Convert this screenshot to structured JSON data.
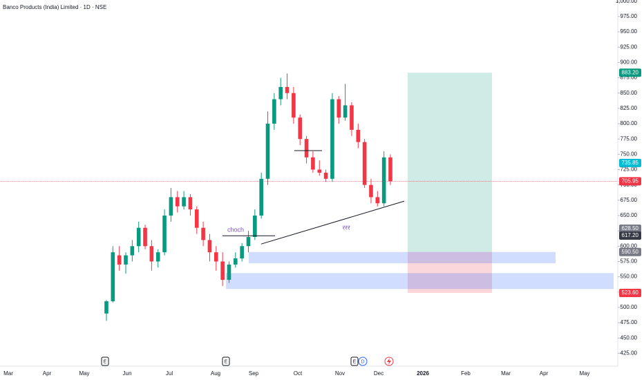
{
  "chart_data": {
    "type": "candlestick",
    "title": "Banco Products (India) Limited · 1D · NSE",
    "x_labels": [
      "Mar",
      "Apr",
      "May",
      "Jun",
      "Jul",
      "Aug",
      "Sep",
      "Oct",
      "Nov",
      "Dec",
      "2026",
      "Feb",
      "Mar",
      "Apr",
      "May"
    ],
    "open": [
      490,
      510,
      585,
      570,
      585,
      600,
      630,
      600,
      575,
      590,
      650,
      680,
      665,
      680,
      660,
      630,
      610,
      590,
      575,
      545,
      570,
      580,
      600,
      615,
      650,
      710,
      800,
      840,
      860,
      850,
      810,
      775,
      745,
      725,
      720,
      710,
      840,
      810,
      830,
      790,
      770,
      700,
      680,
      670,
      745
    ],
    "high": [
      512,
      600,
      600,
      590,
      610,
      640,
      635,
      610,
      595,
      660,
      695,
      690,
      690,
      685,
      665,
      640,
      620,
      600,
      590,
      575,
      590,
      605,
      625,
      660,
      720,
      820,
      850,
      875,
      882,
      860,
      815,
      780,
      755,
      740,
      725,
      850,
      845,
      865,
      835,
      800,
      775,
      710,
      690,
      755,
      750
    ],
    "low": [
      478,
      508,
      560,
      555,
      575,
      590,
      595,
      560,
      565,
      585,
      640,
      655,
      660,
      650,
      620,
      600,
      575,
      560,
      535,
      540,
      565,
      575,
      590,
      610,
      645,
      700,
      790,
      830,
      840,
      800,
      765,
      735,
      720,
      715,
      705,
      705,
      800,
      805,
      780,
      760,
      695,
      670,
      665,
      665,
      700
    ],
    "close": [
      510,
      590,
      570,
      585,
      600,
      630,
      600,
      575,
      590,
      650,
      680,
      665,
      680,
      660,
      630,
      610,
      590,
      575,
      545,
      570,
      580,
      600,
      615,
      650,
      710,
      800,
      840,
      860,
      850,
      810,
      775,
      745,
      725,
      720,
      710,
      840,
      810,
      830,
      790,
      770,
      700,
      680,
      670,
      745,
      705.95
    ],
    "up_color": "#089981",
    "down_color": "#f23645",
    "ylim": [
      404,
      1002
    ],
    "yticks": [
      {
        "value": 1000,
        "label": "1,000.00"
      },
      {
        "value": 975,
        "label": "975.00"
      },
      {
        "value": 950,
        "label": "950.00"
      },
      {
        "value": 925,
        "label": "925.00"
      },
      {
        "value": 900,
        "label": "900.00"
      },
      {
        "value": 875,
        "label": "875.00"
      },
      {
        "value": 850,
        "label": "850.00"
      },
      {
        "value": 825,
        "label": "825.00"
      },
      {
        "value": 800,
        "label": "800.00"
      },
      {
        "value": 775,
        "label": "775.00"
      },
      {
        "value": 750,
        "label": "750.00"
      },
      {
        "value": 725,
        "label": "725.00"
      },
      {
        "value": 700,
        "label": "700.00"
      },
      {
        "value": 675,
        "label": "675.00"
      },
      {
        "value": 650,
        "label": "650.00"
      },
      {
        "value": 625,
        "label": "625.00"
      },
      {
        "value": 600,
        "label": "600.00"
      },
      {
        "value": 575,
        "label": "575.00"
      },
      {
        "value": 550,
        "label": "550.00"
      },
      {
        "value": 525,
        "label": "525.00"
      },
      {
        "value": 500,
        "label": "500.00"
      },
      {
        "value": 475,
        "label": "475.00"
      },
      {
        "value": 450,
        "label": "450.00"
      },
      {
        "value": 425,
        "label": "425.00"
      }
    ],
    "price_labels": [
      {
        "value": 883.2,
        "label": "883.20",
        "color": "#089981"
      },
      {
        "value": 735.85,
        "label": "735.85",
        "color": "#00bcd4"
      },
      {
        "value": 705.95,
        "label": "705.95",
        "color": "#f23645"
      },
      {
        "value": 628.5,
        "label": "628.50",
        "color": "#787b86"
      },
      {
        "value": 617.2,
        "label": "617.20",
        "color": "#363a45"
      },
      {
        "value": 590.5,
        "label": "590.50",
        "color": "#787b86"
      },
      {
        "value": 523.6,
        "label": "523.60",
        "color": "#f23645"
      }
    ],
    "trend_line": {
      "start": 603.5,
      "end": 673.5
    },
    "choch_line": {
      "label": "choch",
      "price": 617
    },
    "level_line": 756,
    "note": "ररर",
    "zones": [
      {
        "top": 590.5,
        "bottom": 572
      },
      {
        "top": 556,
        "bottom": 530
      }
    ],
    "position": {
      "target": 883.2,
      "entry": 590.5,
      "stop": 523.6
    },
    "events": [
      "E",
      "E",
      "E",
      "D"
    ]
  }
}
